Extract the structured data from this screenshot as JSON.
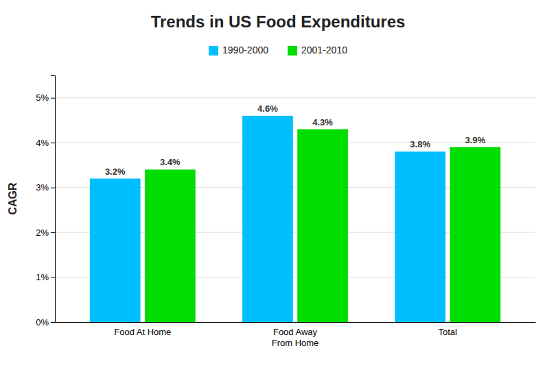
{
  "chart_data": {
    "type": "bar",
    "title": "Trends in US Food Expenditures",
    "ylabel": "CAGR",
    "categories": [
      "Food At Home",
      "Food Away\nFrom Home",
      "Total"
    ],
    "series": [
      {
        "name": "1990-2000",
        "color": "#00BFFF",
        "values": [
          3.2,
          4.6,
          3.8
        ],
        "value_labels": [
          "3.2%",
          "4.6%",
          "3.8%"
        ]
      },
      {
        "name": "2001-2010",
        "color": "#00DD00",
        "values": [
          3.4,
          4.3,
          3.9
        ],
        "value_labels": [
          "3.4%",
          "4.3%",
          "3.9%"
        ]
      }
    ],
    "ylim": [
      0,
      5.5
    ],
    "yticks": [
      {
        "value": 0,
        "label": "0%"
      },
      {
        "value": 1,
        "label": "1%"
      },
      {
        "value": 2,
        "label": "2%"
      },
      {
        "value": 3,
        "label": "3%"
      },
      {
        "value": 4,
        "label": "4%"
      },
      {
        "value": 5,
        "label": "5%"
      }
    ],
    "grid": true,
    "legend": "top",
    "data_labels": true
  }
}
